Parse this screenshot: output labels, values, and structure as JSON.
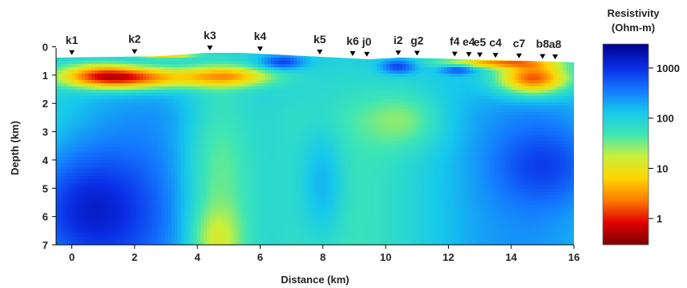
{
  "chart_data": {
    "type": "heatmap",
    "xlabel": "Distance (km)",
    "ylabel": "Depth (km)",
    "xlim": [
      -0.5,
      16
    ],
    "ylim": [
      7,
      -0.1
    ],
    "x_ticks": [
      0,
      2,
      4,
      6,
      8,
      10,
      12,
      14,
      16
    ],
    "y_ticks": [
      0,
      1,
      2,
      3,
      4,
      5,
      6,
      7
    ],
    "colorbar": {
      "title_line1": "Resistivity",
      "title_line2": "(Ohm-m)",
      "scale": "log",
      "range": [
        0.3,
        3000
      ],
      "ticks": [
        1,
        10,
        100,
        1000
      ],
      "tick_labels": [
        "1",
        "10",
        "100",
        "1000"
      ],
      "colors": [
        "#7a0000",
        "#e00000",
        "#ff7a00",
        "#ffd400",
        "#c8f03c",
        "#3ee6b4",
        "#16c8ec",
        "#1478ff",
        "#0a2ee6",
        "#00008c"
      ]
    },
    "stations": [
      {
        "name": "k1",
        "x": 0.0
      },
      {
        "name": "k2",
        "x": 2.0
      },
      {
        "name": "k3",
        "x": 4.4
      },
      {
        "name": "k4",
        "x": 6.0
      },
      {
        "name": "k5",
        "x": 7.9
      },
      {
        "name": "k6",
        "x": 8.95
      },
      {
        "name": "j0",
        "x": 9.4
      },
      {
        "name": "i2",
        "x": 10.4
      },
      {
        "name": "g2",
        "x": 11.0
      },
      {
        "name": "f4",
        "x": 12.2
      },
      {
        "name": "e4",
        "x": 12.65
      },
      {
        "name": "e5",
        "x": 13.0
      },
      {
        "name": "c4",
        "x": 13.5
      },
      {
        "name": "c7",
        "x": 14.25
      },
      {
        "name": "b8",
        "x": 15.0
      },
      {
        "name": "a8",
        "x": 15.4
      }
    ],
    "base_resistivity": 120,
    "anomalies": [
      {
        "x": 2.0,
        "z": 1.1,
        "sx": 1.3,
        "sz": 0.28,
        "log10_delta": -1.8
      },
      {
        "x": 0.8,
        "z": 1.0,
        "sx": 0.9,
        "sz": 0.3,
        "log10_delta": -1.1
      },
      {
        "x": 5.0,
        "z": 1.05,
        "sx": 1.0,
        "sz": 0.25,
        "log10_delta": -1.3
      },
      {
        "x": 14.7,
        "z": 1.1,
        "sx": 0.8,
        "sz": 0.4,
        "log10_delta": -2.0
      },
      {
        "x": 13.5,
        "z": 0.55,
        "sx": 1.2,
        "sz": 0.14,
        "log10_delta": -1.5
      },
      {
        "x": 4.6,
        "z": 4.8,
        "sx": 0.8,
        "sz": 2.8,
        "log10_delta": -0.7
      },
      {
        "x": 4.6,
        "z": 6.9,
        "sx": 0.6,
        "sz": 0.8,
        "log10_delta": -0.6
      },
      {
        "x": 10.6,
        "z": 2.6,
        "sx": 0.9,
        "sz": 0.7,
        "log10_delta": -0.45
      },
      {
        "x": 0.3,
        "z": 5.8,
        "sx": 1.6,
        "sz": 1.6,
        "log10_delta": 1.0
      },
      {
        "x": 8.0,
        "z": 4.8,
        "sx": 0.5,
        "sz": 1.4,
        "log10_delta": 0.5
      },
      {
        "x": 15.2,
        "z": 4.2,
        "sx": 1.2,
        "sz": 1.0,
        "log10_delta": 0.55
      },
      {
        "x": 6.7,
        "z": 0.55,
        "sx": 0.5,
        "sz": 0.18,
        "log10_delta": 0.9
      },
      {
        "x": 10.4,
        "z": 0.7,
        "sx": 0.4,
        "sz": 0.18,
        "log10_delta": 0.9
      },
      {
        "x": 12.3,
        "z": 0.8,
        "sx": 0.4,
        "sz": 0.12,
        "log10_delta": 0.8
      },
      {
        "x": 3.0,
        "z": 0.3,
        "sx": 0.6,
        "sz": 0.08,
        "log10_delta": -1.3
      }
    ]
  }
}
